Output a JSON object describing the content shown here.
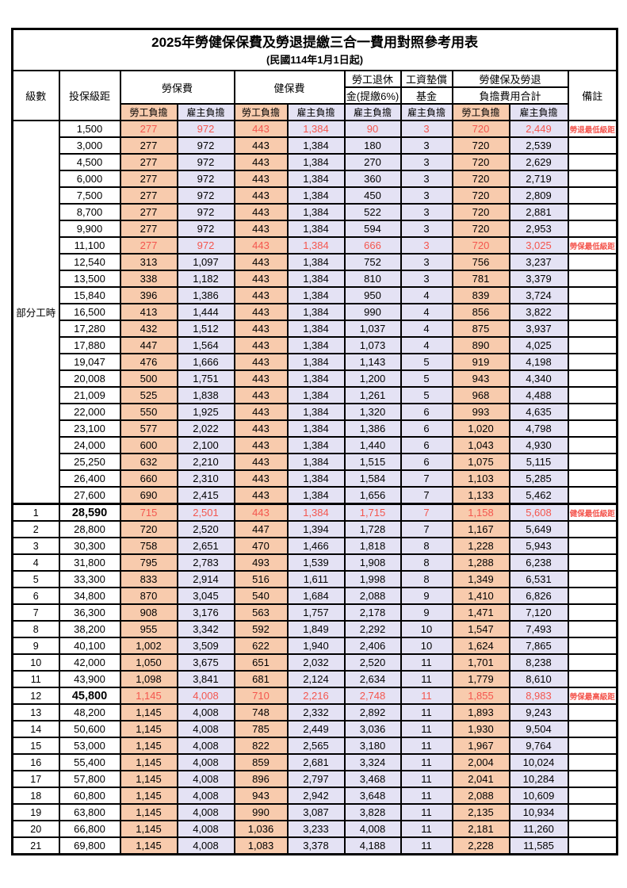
{
  "table": {
    "title": "2025年勞健保保費及勞退提繳三合一費用對照參考用表",
    "subtitle": "(民國114年1月1日起)",
    "header": {
      "level": "級數",
      "bracket": "投保級距",
      "labor_fee": "勞保費",
      "health_fee": "健保費",
      "pension_line1": "勞工退休",
      "pension_line2": "金(提繳6%)",
      "wage_fund_line1": "工資墊償",
      "wage_fund_line2": "基金",
      "total_line1": "勞健保及勞退",
      "total_line2": "負擔費用合計",
      "remark": "備註",
      "employee_share": "勞工負擔",
      "employer_share": "雇主負擔"
    },
    "colors": {
      "employee_fill": "#F8CBAD",
      "employer_fill": "#E4E2F4",
      "highlight_text": "#F4564E",
      "border": "#000000",
      "background": "#FFFFFF"
    },
    "part_time_label": "部分工時",
    "part_time_rowspan": 23,
    "rows": [
      {
        "level": "",
        "bracket": "1,500",
        "values": [
          "277",
          "972",
          "443",
          "1,384",
          "90",
          "3",
          "720",
          "2,449"
        ],
        "remark": "勞退最低級距",
        "highlight": true,
        "bracket_bold": false
      },
      {
        "level": "",
        "bracket": "3,000",
        "values": [
          "277",
          "972",
          "443",
          "1,384",
          "180",
          "3",
          "720",
          "2,539"
        ],
        "remark": "",
        "highlight": false,
        "bracket_bold": false
      },
      {
        "level": "",
        "bracket": "4,500",
        "values": [
          "277",
          "972",
          "443",
          "1,384",
          "270",
          "3",
          "720",
          "2,629"
        ],
        "remark": "",
        "highlight": false,
        "bracket_bold": false
      },
      {
        "level": "",
        "bracket": "6,000",
        "values": [
          "277",
          "972",
          "443",
          "1,384",
          "360",
          "3",
          "720",
          "2,719"
        ],
        "remark": "",
        "highlight": false,
        "bracket_bold": false
      },
      {
        "level": "",
        "bracket": "7,500",
        "values": [
          "277",
          "972",
          "443",
          "1,384",
          "450",
          "3",
          "720",
          "2,809"
        ],
        "remark": "",
        "highlight": false,
        "bracket_bold": false
      },
      {
        "level": "",
        "bracket": "8,700",
        "values": [
          "277",
          "972",
          "443",
          "1,384",
          "522",
          "3",
          "720",
          "2,881"
        ],
        "remark": "",
        "highlight": false,
        "bracket_bold": false
      },
      {
        "level": "",
        "bracket": "9,900",
        "values": [
          "277",
          "972",
          "443",
          "1,384",
          "594",
          "3",
          "720",
          "2,953"
        ],
        "remark": "",
        "highlight": false,
        "bracket_bold": false
      },
      {
        "level": "",
        "bracket": "11,100",
        "values": [
          "277",
          "972",
          "443",
          "1,384",
          "666",
          "3",
          "720",
          "3,025"
        ],
        "remark": "勞保最低級距",
        "highlight": true,
        "bracket_bold": false
      },
      {
        "level": "",
        "bracket": "12,540",
        "values": [
          "313",
          "1,097",
          "443",
          "1,384",
          "752",
          "3",
          "756",
          "3,237"
        ],
        "remark": "",
        "highlight": false,
        "bracket_bold": false
      },
      {
        "level": "",
        "bracket": "13,500",
        "values": [
          "338",
          "1,182",
          "443",
          "1,384",
          "810",
          "3",
          "781",
          "3,379"
        ],
        "remark": "",
        "highlight": false,
        "bracket_bold": false
      },
      {
        "level": "",
        "bracket": "15,840",
        "values": [
          "396",
          "1,386",
          "443",
          "1,384",
          "950",
          "4",
          "839",
          "3,724"
        ],
        "remark": "",
        "highlight": false,
        "bracket_bold": false
      },
      {
        "level": "",
        "bracket": "16,500",
        "values": [
          "413",
          "1,444",
          "443",
          "1,384",
          "990",
          "4",
          "856",
          "3,822"
        ],
        "remark": "",
        "highlight": false,
        "bracket_bold": false
      },
      {
        "level": "",
        "bracket": "17,280",
        "values": [
          "432",
          "1,512",
          "443",
          "1,384",
          "1,037",
          "4",
          "875",
          "3,937"
        ],
        "remark": "",
        "highlight": false,
        "bracket_bold": false
      },
      {
        "level": "",
        "bracket": "17,880",
        "values": [
          "447",
          "1,564",
          "443",
          "1,384",
          "1,073",
          "4",
          "890",
          "4,025"
        ],
        "remark": "",
        "highlight": false,
        "bracket_bold": false
      },
      {
        "level": "",
        "bracket": "19,047",
        "values": [
          "476",
          "1,666",
          "443",
          "1,384",
          "1,143",
          "5",
          "919",
          "4,198"
        ],
        "remark": "",
        "highlight": false,
        "bracket_bold": false
      },
      {
        "level": "",
        "bracket": "20,008",
        "values": [
          "500",
          "1,751",
          "443",
          "1,384",
          "1,200",
          "5",
          "943",
          "4,340"
        ],
        "remark": "",
        "highlight": false,
        "bracket_bold": false
      },
      {
        "level": "",
        "bracket": "21,009",
        "values": [
          "525",
          "1,838",
          "443",
          "1,384",
          "1,261",
          "5",
          "968",
          "4,488"
        ],
        "remark": "",
        "highlight": false,
        "bracket_bold": false
      },
      {
        "level": "",
        "bracket": "22,000",
        "values": [
          "550",
          "1,925",
          "443",
          "1,384",
          "1,320",
          "6",
          "993",
          "4,635"
        ],
        "remark": "",
        "highlight": false,
        "bracket_bold": false
      },
      {
        "level": "",
        "bracket": "23,100",
        "values": [
          "577",
          "2,022",
          "443",
          "1,384",
          "1,386",
          "6",
          "1,020",
          "4,798"
        ],
        "remark": "",
        "highlight": false,
        "bracket_bold": false
      },
      {
        "level": "",
        "bracket": "24,000",
        "values": [
          "600",
          "2,100",
          "443",
          "1,384",
          "1,440",
          "6",
          "1,043",
          "4,930"
        ],
        "remark": "",
        "highlight": false,
        "bracket_bold": false
      },
      {
        "level": "",
        "bracket": "25,250",
        "values": [
          "632",
          "2,210",
          "443",
          "1,384",
          "1,515",
          "6",
          "1,075",
          "5,115"
        ],
        "remark": "",
        "highlight": false,
        "bracket_bold": false
      },
      {
        "level": "",
        "bracket": "26,400",
        "values": [
          "660",
          "2,310",
          "443",
          "1,384",
          "1,584",
          "7",
          "1,103",
          "5,285"
        ],
        "remark": "",
        "highlight": false,
        "bracket_bold": false
      },
      {
        "level": "",
        "bracket": "27,600",
        "values": [
          "690",
          "2,415",
          "443",
          "1,384",
          "1,656",
          "7",
          "1,133",
          "5,462"
        ],
        "remark": "",
        "highlight": false,
        "bracket_bold": false
      },
      {
        "level": "1",
        "bracket": "28,590",
        "values": [
          "715",
          "2,501",
          "443",
          "1,384",
          "1,715",
          "7",
          "1,158",
          "5,608"
        ],
        "remark": "健保最低級距",
        "highlight": true,
        "bracket_bold": true
      },
      {
        "level": "2",
        "bracket": "28,800",
        "values": [
          "720",
          "2,520",
          "447",
          "1,394",
          "1,728",
          "7",
          "1,167",
          "5,649"
        ],
        "remark": "",
        "highlight": false,
        "bracket_bold": false
      },
      {
        "level": "3",
        "bracket": "30,300",
        "values": [
          "758",
          "2,651",
          "470",
          "1,466",
          "1,818",
          "8",
          "1,228",
          "5,943"
        ],
        "remark": "",
        "highlight": false,
        "bracket_bold": false
      },
      {
        "level": "4",
        "bracket": "31,800",
        "values": [
          "795",
          "2,783",
          "493",
          "1,539",
          "1,908",
          "8",
          "1,288",
          "6,238"
        ],
        "remark": "",
        "highlight": false,
        "bracket_bold": false
      },
      {
        "level": "5",
        "bracket": "33,300",
        "values": [
          "833",
          "2,914",
          "516",
          "1,611",
          "1,998",
          "8",
          "1,349",
          "6,531"
        ],
        "remark": "",
        "highlight": false,
        "bracket_bold": false
      },
      {
        "level": "6",
        "bracket": "34,800",
        "values": [
          "870",
          "3,045",
          "540",
          "1,684",
          "2,088",
          "9",
          "1,410",
          "6,826"
        ],
        "remark": "",
        "highlight": false,
        "bracket_bold": false
      },
      {
        "level": "7",
        "bracket": "36,300",
        "values": [
          "908",
          "3,176",
          "563",
          "1,757",
          "2,178",
          "9",
          "1,471",
          "7,120"
        ],
        "remark": "",
        "highlight": false,
        "bracket_bold": false
      },
      {
        "level": "8",
        "bracket": "38,200",
        "values": [
          "955",
          "3,342",
          "592",
          "1,849",
          "2,292",
          "10",
          "1,547",
          "7,493"
        ],
        "remark": "",
        "highlight": false,
        "bracket_bold": false
      },
      {
        "level": "9",
        "bracket": "40,100",
        "values": [
          "1,002",
          "3,509",
          "622",
          "1,940",
          "2,406",
          "10",
          "1,624",
          "7,865"
        ],
        "remark": "",
        "highlight": false,
        "bracket_bold": false
      },
      {
        "level": "10",
        "bracket": "42,000",
        "values": [
          "1,050",
          "3,675",
          "651",
          "2,032",
          "2,520",
          "11",
          "1,701",
          "8,238"
        ],
        "remark": "",
        "highlight": false,
        "bracket_bold": false
      },
      {
        "level": "11",
        "bracket": "43,900",
        "values": [
          "1,098",
          "3,841",
          "681",
          "2,124",
          "2,634",
          "11",
          "1,779",
          "8,610"
        ],
        "remark": "",
        "highlight": false,
        "bracket_bold": false
      },
      {
        "level": "12",
        "bracket": "45,800",
        "values": [
          "1,145",
          "4,008",
          "710",
          "2,216",
          "2,748",
          "11",
          "1,855",
          "8,983"
        ],
        "remark": "勞保最高級距",
        "highlight": true,
        "bracket_bold": true
      },
      {
        "level": "13",
        "bracket": "48,200",
        "values": [
          "1,145",
          "4,008",
          "748",
          "2,332",
          "2,892",
          "11",
          "1,893",
          "9,243"
        ],
        "remark": "",
        "highlight": false,
        "bracket_bold": false
      },
      {
        "level": "14",
        "bracket": "50,600",
        "values": [
          "1,145",
          "4,008",
          "785",
          "2,449",
          "3,036",
          "11",
          "1,930",
          "9,504"
        ],
        "remark": "",
        "highlight": false,
        "bracket_bold": false
      },
      {
        "level": "15",
        "bracket": "53,000",
        "values": [
          "1,145",
          "4,008",
          "822",
          "2,565",
          "3,180",
          "11",
          "1,967",
          "9,764"
        ],
        "remark": "",
        "highlight": false,
        "bracket_bold": false
      },
      {
        "level": "16",
        "bracket": "55,400",
        "values": [
          "1,145",
          "4,008",
          "859",
          "2,681",
          "3,324",
          "11",
          "2,004",
          "10,024"
        ],
        "remark": "",
        "highlight": false,
        "bracket_bold": false
      },
      {
        "level": "17",
        "bracket": "57,800",
        "values": [
          "1,145",
          "4,008",
          "896",
          "2,797",
          "3,468",
          "11",
          "2,041",
          "10,284"
        ],
        "remark": "",
        "highlight": false,
        "bracket_bold": false
      },
      {
        "level": "18",
        "bracket": "60,800",
        "values": [
          "1,145",
          "4,008",
          "943",
          "2,942",
          "3,648",
          "11",
          "2,088",
          "10,609"
        ],
        "remark": "",
        "highlight": false,
        "bracket_bold": false
      },
      {
        "level": "19",
        "bracket": "63,800",
        "values": [
          "1,145",
          "4,008",
          "990",
          "3,087",
          "3,828",
          "11",
          "2,135",
          "10,934"
        ],
        "remark": "",
        "highlight": false,
        "bracket_bold": false
      },
      {
        "level": "20",
        "bracket": "66,800",
        "values": [
          "1,145",
          "4,008",
          "1,036",
          "3,233",
          "4,008",
          "11",
          "2,181",
          "11,260"
        ],
        "remark": "",
        "highlight": false,
        "bracket_bold": false
      },
      {
        "level": "21",
        "bracket": "69,800",
        "values": [
          "1,145",
          "4,008",
          "1,083",
          "3,378",
          "4,188",
          "11",
          "2,228",
          "11,585"
        ],
        "remark": "",
        "highlight": false,
        "bracket_bold": false
      }
    ]
  }
}
